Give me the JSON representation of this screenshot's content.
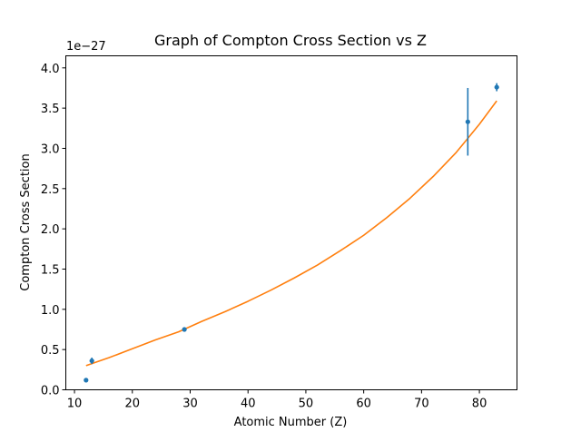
{
  "chart_data": {
    "type": "scatter",
    "title": "Graph of Compton Cross Section vs Z",
    "xlabel": "Atomic Number (Z)",
    "ylabel": "Compton Cross Section",
    "y_offset_text": "1e−27",
    "xlim": [
      8.5,
      86.5
    ],
    "ylim": [
      0.0,
      4.15
    ],
    "x_ticks": [
      10,
      20,
      30,
      40,
      50,
      60,
      70,
      80
    ],
    "x_tick_labels": [
      "10",
      "20",
      "30",
      "40",
      "50",
      "60",
      "70",
      "80"
    ],
    "y_ticks": [
      0.0,
      0.5,
      1.0,
      1.5,
      2.0,
      2.5,
      3.0,
      3.5,
      4.0
    ],
    "y_tick_labels": [
      "0.0",
      "0.5",
      "1.0",
      "1.5",
      "2.0",
      "2.5",
      "3.0",
      "3.5",
      "4.0"
    ],
    "grid": false,
    "series": [
      {
        "kind": "errorbar",
        "color": "#1f77b4",
        "points": [
          {
            "x": 12,
            "y": 0.12,
            "err": 0.02
          },
          {
            "x": 13,
            "y": 0.36,
            "err": 0.04
          },
          {
            "x": 29,
            "y": 0.75,
            "err": 0.02
          },
          {
            "x": 78,
            "y": 3.33,
            "err": 0.42
          },
          {
            "x": 83,
            "y": 3.76,
            "err": 0.05
          }
        ]
      },
      {
        "kind": "line",
        "color": "#ff7f0e",
        "x": [
          12,
          16,
          20,
          24,
          28,
          32,
          36,
          40,
          44,
          48,
          52,
          56,
          60,
          64,
          68,
          72,
          76,
          80,
          83
        ],
        "y": [
          0.3,
          0.4,
          0.51,
          0.62,
          0.72,
          0.85,
          0.97,
          1.1,
          1.24,
          1.39,
          1.55,
          1.73,
          1.92,
          2.14,
          2.38,
          2.65,
          2.95,
          3.3,
          3.59
        ]
      }
    ]
  }
}
